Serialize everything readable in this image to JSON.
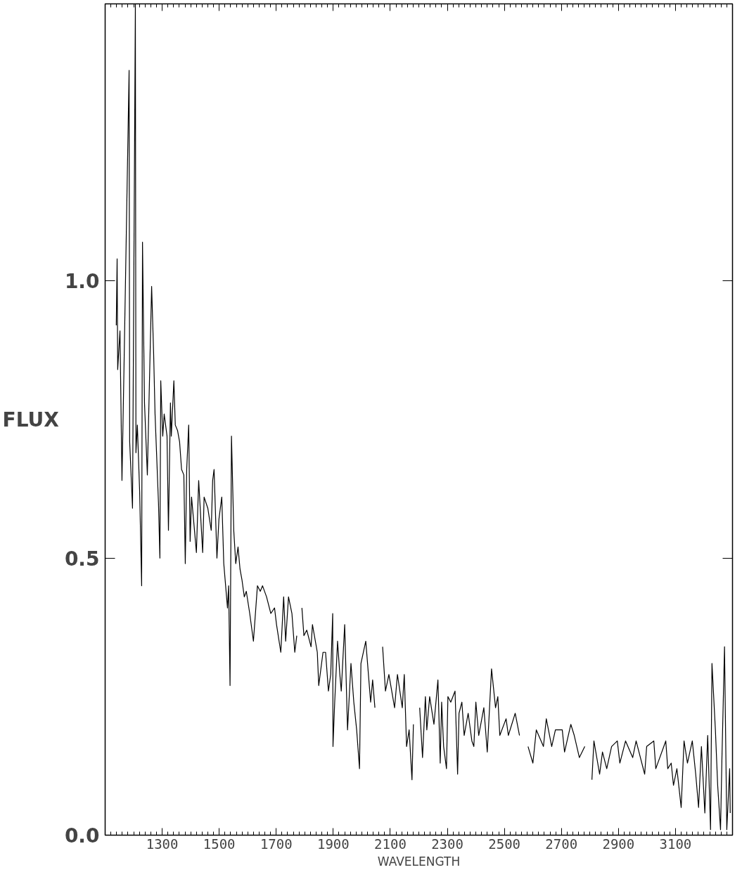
{
  "chart_data": {
    "type": "line",
    "xlabel": "WAVELENGTH",
    "ylabel": "FLUX",
    "xlim": [
      1100,
      3300
    ],
    "ylim": [
      0,
      1.5
    ],
    "xticks": [
      1300,
      1500,
      1700,
      1900,
      2100,
      2300,
      2500,
      2700,
      2900,
      3100
    ],
    "yticks": [
      {
        "value": 0,
        "label": "0.0"
      },
      {
        "value": 0.5,
        "label": "0.5"
      },
      {
        "value": 1.0,
        "label": "1.0"
      }
    ],
    "x": [
      1139,
      1142,
      1144,
      1152,
      1159,
      1166,
      1184,
      1186,
      1196,
      1206,
      1208,
      1213,
      1221,
      1228,
      1231,
      1238,
      1248,
      1255,
      1263,
      1270,
      1275,
      1287,
      1292,
      1295,
      1302,
      1307,
      1317,
      1322,
      1329,
      1332,
      1341,
      1346,
      1354,
      1361,
      1368,
      1376,
      1381,
      1386,
      1393,
      1398,
      1403,
      1415,
      1420,
      1428,
      1442,
      1447,
      1460,
      1472,
      1477,
      1482,
      1492,
      1499,
      1509,
      1516,
      1529,
      1533,
      1538,
      1543,
      1551,
      1558,
      1566,
      1573,
      1580,
      1588,
      1595,
      1607,
      1620,
      1634,
      1644,
      1652,
      1666,
      1681,
      1694,
      1701,
      1716,
      1726,
      1733,
      1743,
      1755,
      1765,
      1772,
      1780,
      1790,
      1797,
      1807,
      1822,
      1827,
      1844,
      1849,
      1864,
      1873,
      1883,
      1891,
      1898,
      1899,
      1905,
      1915,
      1923,
      1928,
      1940,
      1950,
      1957,
      1962,
      1972,
      1982,
      1992,
      1997,
      2014,
      2031,
      2038,
      2046,
      2060,
      2073,
      2083,
      2095,
      2105,
      2115,
      2125,
      2142,
      2149,
      2157,
      2166,
      2176,
      2181,
      2190,
      2203,
      2213,
      2223,
      2228,
      2238,
      2253,
      2267,
      2275,
      2280,
      2287,
      2297,
      2302,
      2312,
      2327,
      2336,
      2341,
      2351,
      2359,
      2373,
      2386,
      2393,
      2400,
      2410,
      2428,
      2440,
      2455,
      2469,
      2477,
      2484,
      2506,
      2514,
      2538,
      2553,
      2568,
      2583,
      2600,
      2612,
      2637,
      2647,
      2666,
      2679,
      2703,
      2711,
      2733,
      2745,
      2763,
      2782,
      2790,
      2807,
      2814,
      2834,
      2844,
      2859,
      2876,
      2896,
      2905,
      2925,
      2950,
      2962,
      2992,
      2999,
      3024,
      3031,
      3066,
      3073,
      3085,
      3093,
      3105,
      3120,
      3130,
      3142,
      3159,
      3171,
      3181,
      3191,
      3203,
      3213,
      3223,
      3228,
      3240,
      3248,
      3258,
      3263,
      3272,
      3280,
      3290,
      3292
    ],
    "series": [
      {
        "color": "#000000",
        "values": [
          0.92,
          1.04,
          0.84,
          0.91,
          0.64,
          0.84,
          1.38,
          0.71,
          0.59,
          1.5,
          0.69,
          0.74,
          0.62,
          0.45,
          1.07,
          0.78,
          0.65,
          0.81,
          0.99,
          0.87,
          0.76,
          0.6,
          0.5,
          0.82,
          0.72,
          0.76,
          0.72,
          0.55,
          0.78,
          0.72,
          0.82,
          0.74,
          0.73,
          0.71,
          0.66,
          0.65,
          0.49,
          0.66,
          0.74,
          0.53,
          0.61,
          0.54,
          0.51,
          0.64,
          0.51,
          0.61,
          0.59,
          0.55,
          0.64,
          0.66,
          0.5,
          0.57,
          0.61,
          0.49,
          0.41,
          0.45,
          0.27,
          0.72,
          0.55,
          0.49,
          0.52,
          0.48,
          0.46,
          0.43,
          0.44,
          0.4,
          0.35,
          0.45,
          0.44,
          0.45,
          0.43,
          0.4,
          0.41,
          0.38,
          0.33,
          0.43,
          0.35,
          0.43,
          0.4,
          0.33,
          0.36,
          null,
          0.41,
          0.36,
          0.37,
          0.34,
          0.38,
          0.33,
          0.27,
          0.33,
          0.33,
          0.26,
          0.29,
          0.4,
          0.16,
          0.24,
          0.35,
          0.29,
          0.26,
          0.38,
          0.19,
          0.26,
          0.31,
          0.24,
          0.19,
          0.12,
          0.31,
          0.35,
          0.24,
          0.28,
          0.23,
          null,
          0.34,
          0.26,
          0.29,
          0.26,
          0.23,
          0.29,
          0.23,
          0.29,
          0.16,
          0.19,
          0.1,
          0.2,
          null,
          0.23,
          0.14,
          0.25,
          0.19,
          0.25,
          0.2,
          0.28,
          0.13,
          0.24,
          0.16,
          0.12,
          0.25,
          0.24,
          0.26,
          0.11,
          0.22,
          0.24,
          0.18,
          0.22,
          0.17,
          0.16,
          0.24,
          0.18,
          0.23,
          0.15,
          0.3,
          0.23,
          0.25,
          0.18,
          0.21,
          0.18,
          0.22,
          0.18,
          null,
          0.16,
          0.13,
          0.19,
          0.16,
          0.21,
          0.16,
          0.19,
          0.19,
          0.15,
          0.2,
          0.18,
          0.14,
          0.16,
          null,
          0.1,
          0.17,
          0.11,
          0.15,
          0.12,
          0.16,
          0.17,
          0.13,
          0.17,
          0.14,
          0.17,
          0.11,
          0.16,
          0.17,
          0.12,
          0.17,
          0.12,
          0.13,
          0.09,
          0.12,
          0.05,
          0.17,
          0.13,
          0.17,
          0.11,
          0.05,
          0.16,
          0.04,
          0.18,
          0.01,
          0.31,
          0.19,
          0.09,
          0.01,
          0.14,
          0.34,
          0.01,
          0.12,
          0.04
        ]
      }
    ]
  }
}
